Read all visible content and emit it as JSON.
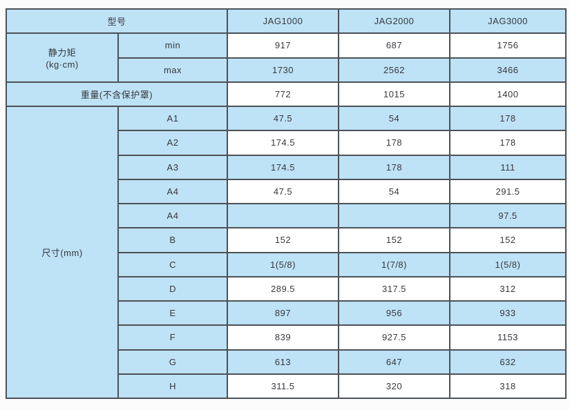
{
  "table": {
    "header": {
      "model_label": "型号",
      "models": [
        "JAG1000",
        "JAG2000",
        "JAG3000"
      ]
    },
    "static_torque": {
      "label": "静力矩",
      "unit": "(kg·cm)",
      "min_label": "min",
      "max_label": "max",
      "min_values": [
        "917",
        "687",
        "1756"
      ],
      "max_values": [
        "1730",
        "2562",
        "3466"
      ]
    },
    "weight": {
      "label": "重量(不含保护罩)",
      "values": [
        "772",
        "1015",
        "1400"
      ]
    },
    "dimensions": {
      "label": "尺寸(mm)",
      "rows": [
        {
          "param": "A1",
          "values": [
            "47.5",
            "54",
            "178"
          ]
        },
        {
          "param": "A2",
          "values": [
            "174.5",
            "178",
            "178"
          ]
        },
        {
          "param": "A3",
          "values": [
            "174.5",
            "178",
            "111"
          ]
        },
        {
          "param": "A4",
          "values": [
            "47.5",
            "54",
            "291.5"
          ]
        },
        {
          "param": "A4",
          "values": [
            "",
            "",
            "97.5"
          ]
        },
        {
          "param": "B",
          "values": [
            "152",
            "152",
            "152"
          ]
        },
        {
          "param": "C",
          "values": [
            "1(5/8)",
            "1(7/8)",
            "1(5/8)"
          ]
        },
        {
          "param": "D",
          "values": [
            "289.5",
            "317.5",
            "312"
          ]
        },
        {
          "param": "E",
          "values": [
            "897",
            "956",
            "933"
          ]
        },
        {
          "param": "F",
          "values": [
            "839",
            "927.5",
            "1153"
          ]
        },
        {
          "param": "G",
          "values": [
            "613",
            "647",
            "632"
          ]
        },
        {
          "param": "H",
          "values": [
            "311.5",
            "320",
            "318"
          ]
        }
      ]
    }
  },
  "colors": {
    "row_blue": "#bee2f6",
    "row_white": "#ffffff",
    "border": "#4b5157",
    "text": "#36393d",
    "page_bg": "#fcfcfc"
  }
}
